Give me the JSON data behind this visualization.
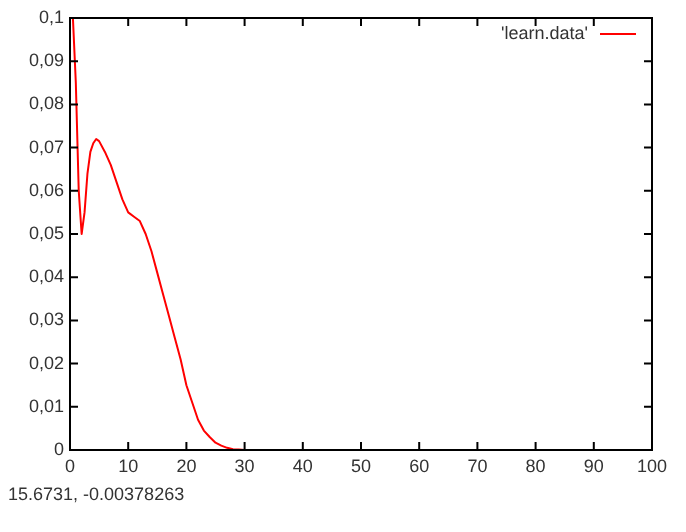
{
  "chart_data": {
    "type": "line",
    "annotations": [
      "15.6731, -0.00378263"
    ],
    "legend": "top right",
    "grid": false,
    "marker": "none",
    "line_style": "solid",
    "xlim": [
      0,
      100
    ],
    "xticks": [
      0,
      10,
      20,
      30,
      40,
      50,
      60,
      70,
      80,
      90,
      100
    ],
    "ylim": [
      0,
      0.1
    ],
    "yticks": [
      0,
      {
        "value": 0.01,
        "label": "0,01"
      },
      {
        "value": 0.02,
        "label": "0,02"
      },
      {
        "value": 0.03,
        "label": "0,03"
      },
      {
        "value": 0.04,
        "label": "0,04"
      },
      {
        "value": 0.05,
        "label": "0,05"
      },
      {
        "value": 0.06,
        "label": "0,06"
      },
      {
        "value": 0.07,
        "label": "0,07"
      },
      {
        "value": 0.08,
        "label": "0,08"
      },
      {
        "value": 0.09,
        "label": "0,09"
      },
      {
        "value": 0.1,
        "label": "0,1"
      }
    ],
    "series": [
      {
        "name": "'learn.data'",
        "color": "#ff0000",
        "x": [
          0.5,
          1,
          1.5,
          2,
          2.5,
          3,
          3.5,
          4,
          4.5,
          5,
          6,
          7,
          8,
          9,
          10,
          11,
          12,
          13,
          14,
          15,
          16,
          17,
          18,
          19,
          20,
          21,
          22,
          23,
          24,
          25,
          26,
          27,
          28,
          29,
          30
        ],
        "values": [
          0.1,
          0.085,
          0.06,
          0.05,
          0.055,
          0.064,
          0.069,
          0.071,
          0.072,
          0.0715,
          0.069,
          0.066,
          0.062,
          0.058,
          0.055,
          0.054,
          0.053,
          0.05,
          0.046,
          0.041,
          0.036,
          0.031,
          0.026,
          0.021,
          0.015,
          0.011,
          0.007,
          0.0045,
          0.003,
          0.0017,
          0.001,
          0.0005,
          0.0002,
          0.0001,
          0
        ]
      }
    ]
  }
}
